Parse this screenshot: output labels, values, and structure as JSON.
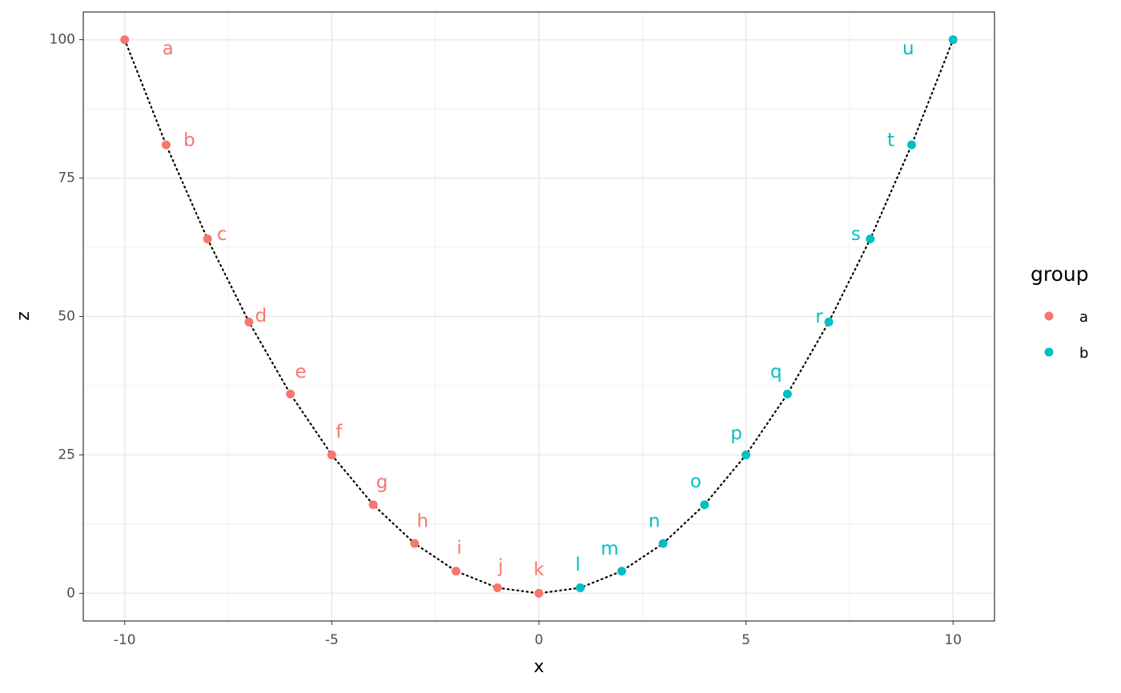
{
  "chart_data": {
    "type": "scatter",
    "x_label": "x",
    "y_label": "z",
    "legend_title": "group",
    "xlim": [
      -11,
      11
    ],
    "xticks": [
      -10,
      -5,
      0,
      5,
      10
    ],
    "ylim": [
      -5,
      105
    ],
    "yticks": [
      0,
      25,
      50,
      75,
      100
    ],
    "grid": true,
    "legend": "right",
    "line_style": "dotted",
    "line_color": "#000000",
    "series": [
      {
        "name": "a",
        "color": "#F8766D",
        "x": [
          -10,
          -9,
          -8,
          -7,
          -6,
          -5,
          -4,
          -3,
          -2,
          -1,
          0
        ],
        "values": [
          100,
          81,
          64,
          49,
          36,
          25,
          16,
          9,
          4,
          1,
          0
        ],
        "labels": [
          "a",
          "b",
          "c",
          "d",
          "e",
          "f",
          "g",
          "h",
          "i",
          "j",
          "k"
        ]
      },
      {
        "name": "b",
        "color": "#00BFC4",
        "x": [
          1,
          2,
          3,
          4,
          5,
          6,
          7,
          8,
          9,
          10
        ],
        "values": [
          1,
          4,
          9,
          16,
          25,
          36,
          49,
          64,
          81,
          100
        ],
        "labels": [
          "l",
          "m",
          "n",
          "o",
          "p",
          "q",
          "r",
          "s",
          "t",
          "u"
        ]
      }
    ]
  }
}
